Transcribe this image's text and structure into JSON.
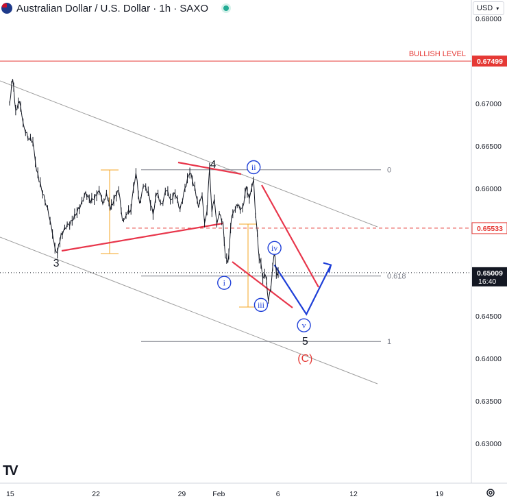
{
  "header": {
    "title": "Australian Dollar / U.S. Dollar · 1h · SAXO",
    "currency_label": "USD"
  },
  "chart_data": {
    "type": "line",
    "symbol": "AUDUSD",
    "ylim": [
      0.625,
      0.6815
    ],
    "price_ticks": [
      {
        "label": "0.68000",
        "v": 0.68
      },
      {
        "label": "0.67000",
        "v": 0.67
      },
      {
        "label": "0.66500",
        "v": 0.665
      },
      {
        "label": "0.66000",
        "v": 0.66
      },
      {
        "label": "0.64500",
        "v": 0.645
      },
      {
        "label": "0.64000",
        "v": 0.64
      },
      {
        "label": "0.63500",
        "v": 0.635
      },
      {
        "label": "0.63000",
        "v": 0.63
      }
    ],
    "time_ticks": [
      {
        "label": "15",
        "day": 0
      },
      {
        "label": "22",
        "day": 7
      },
      {
        "label": "29",
        "day": 14
      },
      {
        "label": "Feb",
        "day": 17
      },
      {
        "label": "6",
        "day": 22
      },
      {
        "label": "12",
        "day": 28
      },
      {
        "label": "19",
        "day": 35
      }
    ],
    "bullish_level": {
      "label": "BULLISH LEVEL",
      "value": "0.67499",
      "v": 0.67499,
      "color": "#e53935"
    },
    "dashed_level": {
      "value": "0.65533",
      "v": 0.65533,
      "color": "#e53935"
    },
    "current_price": {
      "value": "0.65009",
      "time": "16:40",
      "v": 0.65009
    },
    "fibonacci": [
      {
        "label": "0",
        "v": 0.6622
      },
      {
        "label": "0.618",
        "v": 0.6497
      },
      {
        "label": "1",
        "v": 0.642
      }
    ],
    "wave_labels": [
      {
        "text": "3",
        "style": "plain",
        "day": 3.8,
        "v": 0.6513
      },
      {
        "text": "4",
        "style": "plain",
        "day": 16.6,
        "v": 0.6629
      },
      {
        "text": "5",
        "style": "plain",
        "day": 24.1,
        "v": 0.6421
      },
      {
        "text": "(C)",
        "style": "red",
        "day": 24.1,
        "v": 0.6401
      },
      {
        "text": "ii",
        "style": "circle",
        "day": 19.9,
        "v": 0.6625
      },
      {
        "text": "i",
        "style": "circle",
        "day": 17.5,
        "v": 0.6489
      },
      {
        "text": "iii",
        "style": "circle",
        "day": 20.5,
        "v": 0.6463
      },
      {
        "text": "iv",
        "style": "circle",
        "day": 21.6,
        "v": 0.653
      },
      {
        "text": "v",
        "style": "circle",
        "day": 24.0,
        "v": 0.6439
      }
    ],
    "projection": [
      {
        "day": 21.6,
        "v": 0.651
      },
      {
        "day": 24.2,
        "v": 0.6452
      },
      {
        "day": 26.2,
        "v": 0.651
      }
    ],
    "price_path": [
      [
        0.0,
        0.67
      ],
      [
        0.25,
        0.673
      ],
      [
        0.5,
        0.669
      ],
      [
        0.8,
        0.6705
      ],
      [
        1.1,
        0.6675
      ],
      [
        1.5,
        0.666
      ],
      [
        1.9,
        0.6655
      ],
      [
        2.1,
        0.663
      ],
      [
        2.4,
        0.661
      ],
      [
        2.8,
        0.659
      ],
      [
        3.2,
        0.657
      ],
      [
        3.5,
        0.6545
      ],
      [
        3.7,
        0.653
      ],
      [
        3.9,
        0.6525
      ],
      [
        4.2,
        0.6545
      ],
      [
        4.6,
        0.6555
      ],
      [
        5.0,
        0.656
      ],
      [
        5.4,
        0.657
      ],
      [
        5.8,
        0.658
      ],
      [
        6.2,
        0.6595
      ],
      [
        6.6,
        0.6585
      ],
      [
        7.0,
        0.659
      ],
      [
        7.3,
        0.66
      ],
      [
        7.6,
        0.658
      ],
      [
        7.9,
        0.6595
      ],
      [
        8.2,
        0.6575
      ],
      [
        8.6,
        0.659
      ],
      [
        8.9,
        0.66
      ],
      [
        9.2,
        0.656
      ],
      [
        9.5,
        0.657
      ],
      [
        9.9,
        0.6575
      ],
      [
        10.1,
        0.66
      ],
      [
        10.3,
        0.662
      ],
      [
        10.6,
        0.658
      ],
      [
        10.9,
        0.6605
      ],
      [
        11.3,
        0.6595
      ],
      [
        11.7,
        0.657
      ],
      [
        12.0,
        0.6595
      ],
      [
        12.4,
        0.658
      ],
      [
        12.8,
        0.66
      ],
      [
        13.1,
        0.6585
      ],
      [
        13.5,
        0.6595
      ],
      [
        13.9,
        0.6575
      ],
      [
        14.3,
        0.66
      ],
      [
        14.7,
        0.662
      ],
      [
        15.1,
        0.66
      ],
      [
        15.4,
        0.658
      ],
      [
        15.7,
        0.659
      ],
      [
        15.9,
        0.656
      ],
      [
        16.1,
        0.6575
      ],
      [
        16.3,
        0.6622
      ],
      [
        16.5,
        0.6575
      ],
      [
        16.7,
        0.6585
      ],
      [
        16.9,
        0.656
      ],
      [
        17.1,
        0.657
      ],
      [
        17.4,
        0.656
      ],
      [
        17.6,
        0.652
      ],
      [
        17.8,
        0.651
      ],
      [
        17.95,
        0.654
      ],
      [
        18.1,
        0.6565
      ],
      [
        18.3,
        0.6575
      ],
      [
        18.6,
        0.658
      ],
      [
        18.9,
        0.6575
      ],
      [
        19.1,
        0.6585
      ],
      [
        19.3,
        0.66
      ],
      [
        19.55,
        0.659
      ],
      [
        19.75,
        0.66
      ],
      [
        19.9,
        0.661
      ],
      [
        20.05,
        0.657
      ],
      [
        20.2,
        0.6545
      ],
      [
        20.35,
        0.652
      ],
      [
        20.5,
        0.651
      ],
      [
        20.65,
        0.6495
      ],
      [
        20.8,
        0.65
      ],
      [
        20.95,
        0.649
      ],
      [
        21.1,
        0.647
      ],
      [
        21.3,
        0.648
      ],
      [
        21.45,
        0.651
      ],
      [
        21.6,
        0.6525
      ],
      [
        21.75,
        0.65
      ],
      [
        21.9,
        0.6501
      ]
    ]
  }
}
